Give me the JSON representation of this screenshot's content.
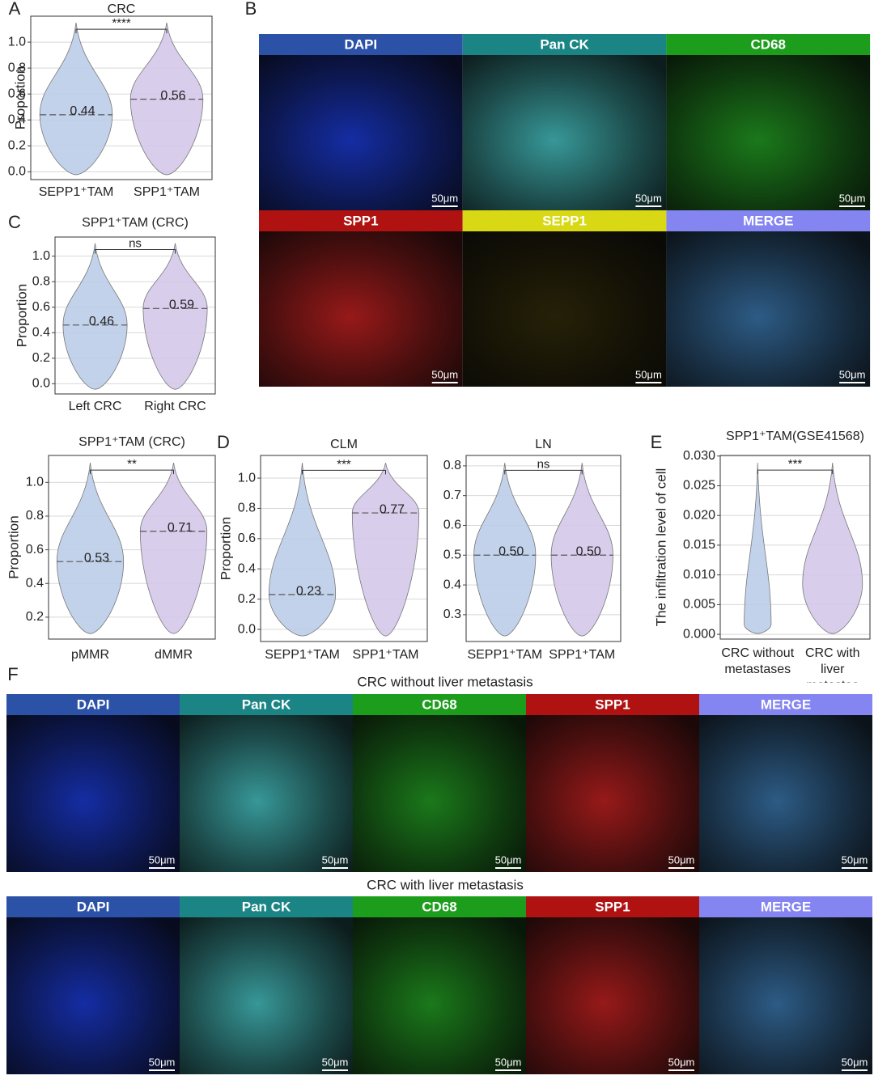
{
  "panel_labels": [
    "A",
    "B",
    "C",
    "D",
    "E",
    "F"
  ],
  "chart_data": [
    {
      "type": "violin",
      "title": "CRC",
      "y_label": "Proportion",
      "categories": [
        "SEPP1⁺TAM",
        "SPP1⁺TAM"
      ],
      "medians": [
        0.44,
        0.56
      ],
      "significance": "****",
      "colors": [
        "#bccde9",
        "#d5c8ea"
      ],
      "ylim": [
        -0.06,
        1.2
      ],
      "yticks": [
        {
          "value": 0,
          "label": "0.0"
        },
        0.2,
        0.4,
        0.6,
        0.8,
        {
          "value": 1,
          "label": "1.0"
        }
      ],
      "grid": true
    },
    {
      "type": "violin",
      "title": "SPP1⁺TAM (CRC)",
      "y_label": "Proportion",
      "categories": [
        "Left CRC",
        "Right CRC"
      ],
      "medians": [
        0.46,
        0.59
      ],
      "significance": "ns",
      "colors": [
        "#bccde9",
        "#d5c8ea"
      ],
      "ylim": [
        -0.08,
        1.15
      ],
      "yticks": [
        {
          "value": 0,
          "label": "0.0"
        },
        0.2,
        0.4,
        0.6,
        0.8,
        {
          "value": 1,
          "label": "1.0"
        }
      ],
      "grid": true
    },
    {
      "type": "violin",
      "title": "SPP1⁺TAM (CRC)",
      "y_label": "Proportion",
      "categories": [
        "pMMR",
        "dMMR"
      ],
      "medians": [
        0.53,
        0.71
      ],
      "significance": "**",
      "colors": [
        "#bccde9",
        "#d5c8ea"
      ],
      "ylim": [
        0.07,
        1.16
      ],
      "yticks": [
        0.2,
        0.4,
        0.6,
        0.8,
        {
          "value": 1,
          "label": "1.0"
        }
      ],
      "grid": true
    },
    {
      "type": "violin",
      "title": "CLM",
      "y_label": "Proportion",
      "categories": [
        "SEPP1⁺TAM",
        "SPP1⁺TAM"
      ],
      "medians": [
        0.23,
        0.77
      ],
      "significance": "***",
      "colors": [
        "#bccde9",
        "#d5c8ea"
      ],
      "ylim": [
        -0.08,
        1.15
      ],
      "yticks": [
        {
          "value": 0,
          "label": "0.0"
        },
        0.2,
        0.4,
        0.6,
        0.8,
        {
          "value": 1,
          "label": "1.0"
        }
      ],
      "grid": true
    },
    {
      "type": "violin",
      "title": "LN",
      "categories": [
        "SEPP1⁺TAM",
        "SPP1⁺TAM"
      ],
      "medians": [
        0.5,
        0.5
      ],
      "value_labels": [
        "0.50",
        "0.50"
      ],
      "significance": "ns",
      "colors": [
        "#bccde9",
        "#d5c8ea"
      ],
      "ylim": [
        0.21,
        0.835
      ],
      "yticks": [
        0.3,
        0.4,
        0.5,
        0.6,
        0.7,
        0.8
      ],
      "grid": true
    },
    {
      "type": "violin",
      "title": "SPP1⁺TAM(GSE41568)",
      "y_label": "The infiltration level of cell",
      "categories": [
        "CRC without metastases",
        "CRC with liver metastas"
      ],
      "significance": "***",
      "colors": [
        "#bccde9",
        "#d5c8ea"
      ],
      "ylim": [
        -0.0008,
        0.0301
      ],
      "yticks": [
        {
          "value": 0,
          "label": "0.000"
        },
        0.005,
        {
          "value": 0.01,
          "label": "0.010"
        },
        0.015,
        {
          "value": 0.02,
          "label": "0.020"
        },
        0.025,
        {
          "value": 0.03,
          "label": "0.030"
        }
      ],
      "grid": true
    }
  ],
  "images": {
    "scale_label": "50μm",
    "B": [
      {
        "label": "DAPI",
        "header_color": "#2c52a8",
        "tint": "#1a3ad8"
      },
      {
        "label": "Pan CK",
        "header_color": "#1b8585",
        "tint": "#48c8c8"
      },
      {
        "label": "CD68",
        "header_color": "#1c9e1c",
        "tint": "#22a022"
      },
      {
        "label": "SPP1",
        "header_color": "#b01212",
        "tint": "#c82020"
      },
      {
        "label": "SEPP1",
        "header_color": "#d8d814",
        "tint": "#302a08"
      },
      {
        "label": "MERGE",
        "header_color": "#8585f2",
        "tint": "#3a78b0"
      }
    ],
    "F": [
      {
        "title": "CRC without liver metastasis",
        "channels": [
          {
            "label": "DAPI",
            "header_color": "#2c52a8",
            "tint": "#1a3ad8"
          },
          {
            "label": "Pan CK",
            "header_color": "#1b8585",
            "tint": "#48c8c8"
          },
          {
            "label": "CD68",
            "header_color": "#1c9e1c",
            "tint": "#22a022"
          },
          {
            "label": "SPP1",
            "header_color": "#b01212",
            "tint": "#c82020"
          },
          {
            "label": "MERGE",
            "header_color": "#8585f2",
            "tint": "#3a78b0"
          }
        ]
      },
      {
        "title": "CRC with liver metastasis",
        "channels": [
          {
            "label": "DAPI",
            "header_color": "#2c52a8",
            "tint": "#1a3ad8"
          },
          {
            "label": "Pan CK",
            "header_color": "#1b8585",
            "tint": "#48c8c8"
          },
          {
            "label": "CD68",
            "header_color": "#1c9e1c",
            "tint": "#22a022"
          },
          {
            "label": "SPP1",
            "header_color": "#b01212",
            "tint": "#c82020"
          },
          {
            "label": "MERGE",
            "header_color": "#8585f2",
            "tint": "#3a78b0"
          }
        ]
      }
    ]
  }
}
